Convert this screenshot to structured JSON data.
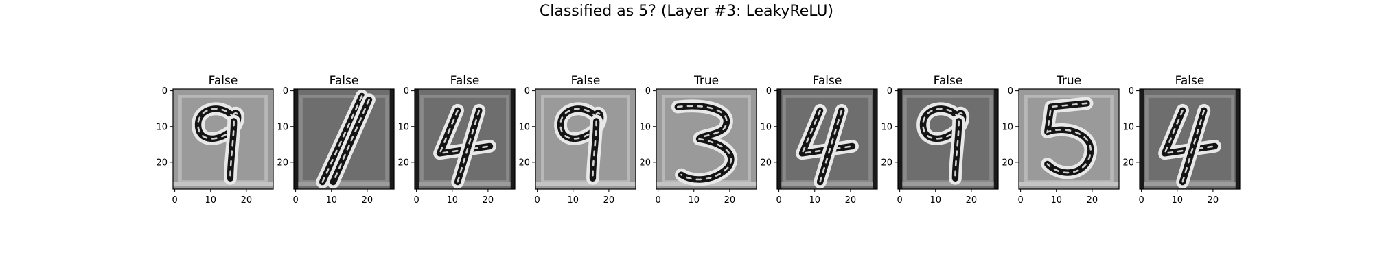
{
  "figure": {
    "suptitle": "Classified as 5? (Layer #3: LeakyReLU)"
  },
  "chart_data": {
    "type": "heatmap",
    "title": "Classified as 5? (Layer #3: LeakyReLU)",
    "colormap": "gray",
    "image_shape": [
      28,
      28
    ],
    "x_ticks": [
      0,
      10,
      20
    ],
    "y_ticks": [
      0,
      10,
      20
    ],
    "xlim": [
      -0.5,
      27.5
    ],
    "ylim": [
      27.5,
      -0.5
    ],
    "panels": [
      {
        "title": "False",
        "digit": "9",
        "background": "light"
      },
      {
        "title": "False",
        "digit": "1",
        "background": "dark"
      },
      {
        "title": "False",
        "digit": "4",
        "background": "dark"
      },
      {
        "title": "False",
        "digit": "9",
        "background": "light"
      },
      {
        "title": "True",
        "digit": "3",
        "background": "light"
      },
      {
        "title": "False",
        "digit": "4",
        "background": "dark"
      },
      {
        "title": "False",
        "digit": "9",
        "background": "dark"
      },
      {
        "title": "True",
        "digit": "5",
        "background": "light"
      },
      {
        "title": "False",
        "digit": "4",
        "background": "dark"
      }
    ]
  },
  "colors": {
    "light_background": "#9a9a9a",
    "dark_background": "#6e6e6e",
    "frame": "#000000"
  }
}
